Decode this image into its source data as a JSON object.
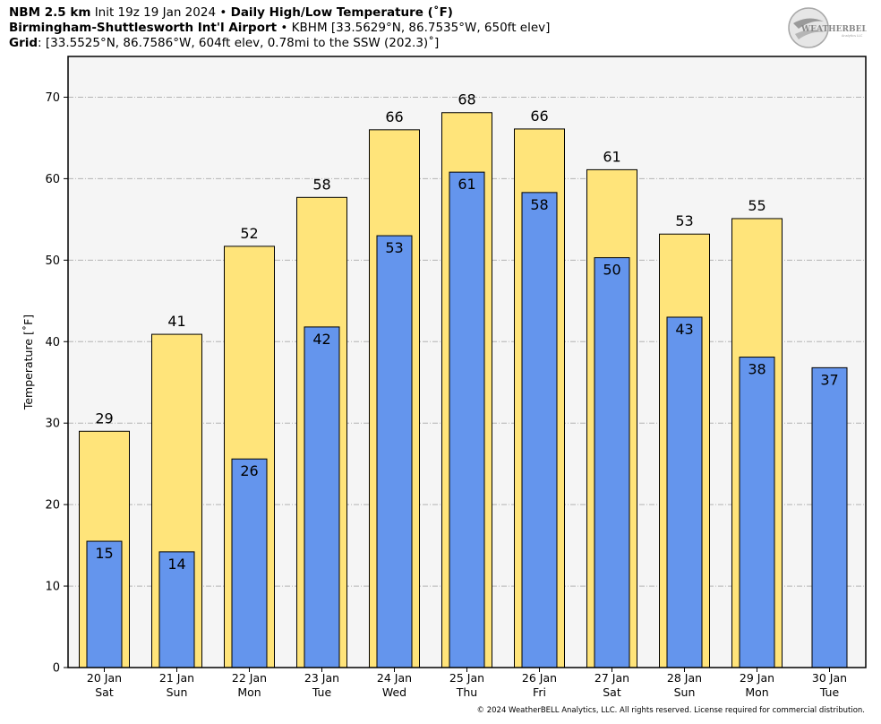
{
  "header": {
    "model": "NBM 2.5 km",
    "init": "Init 19z 19 Jan 2024",
    "sep": "•",
    "product": "Daily High/Low Temperature (˚F)",
    "station_name": "Birmingham-Shuttlesworth Int'l Airport",
    "station_info": "KBHM [33.5629°N, 86.7535°W, 650ft elev]",
    "grid_label": "Grid",
    "grid_info": ": [33.5525°N, 86.7586°W, 604ft elev, 0.78mi to the SSW (202.3)˚]"
  },
  "logo": {
    "text": "WEATHERBELL",
    "sub": "Analytics LLC"
  },
  "footer": "© 2024 WeatherBELL Analytics, LLC. All rights reserved. License required for commercial distribution.",
  "chart_data": {
    "type": "bar",
    "ylabel": "Temperature [˚F]",
    "ylim": [
      0,
      75
    ],
    "yticks": [
      0,
      10,
      20,
      30,
      40,
      50,
      60,
      70
    ],
    "grid": true,
    "categories": [
      "20 Jan",
      "21 Jan",
      "22 Jan",
      "23 Jan",
      "24 Jan",
      "25 Jan",
      "26 Jan",
      "27 Jan",
      "28 Jan",
      "29 Jan",
      "30 Jan"
    ],
    "weekdays": [
      "Sat",
      "Sun",
      "Mon",
      "Tue",
      "Wed",
      "Thu",
      "Fri",
      "Sat",
      "Sun",
      "Mon",
      "Tue"
    ],
    "series": [
      {
        "key": "high",
        "values": [
          29,
          41,
          52,
          58,
          66,
          68,
          66,
          61,
          53,
          55,
          null
        ],
        "exact": [
          29,
          40.9,
          51.7,
          57.7,
          66,
          68.1,
          66.1,
          61.1,
          53.2,
          55.1,
          null
        ]
      },
      {
        "key": "low",
        "values": [
          15,
          14,
          26,
          42,
          53,
          61,
          58,
          50,
          43,
          38,
          37
        ],
        "exact": [
          15.5,
          14.2,
          25.6,
          41.8,
          53,
          60.8,
          58.3,
          50.3,
          43,
          38.1,
          36.8
        ]
      }
    ],
    "colors": {
      "high": "#ffe47a",
      "low": "#6495ed",
      "plot_bg": "#f5f5f5",
      "grid": "#b4b4b4"
    }
  }
}
